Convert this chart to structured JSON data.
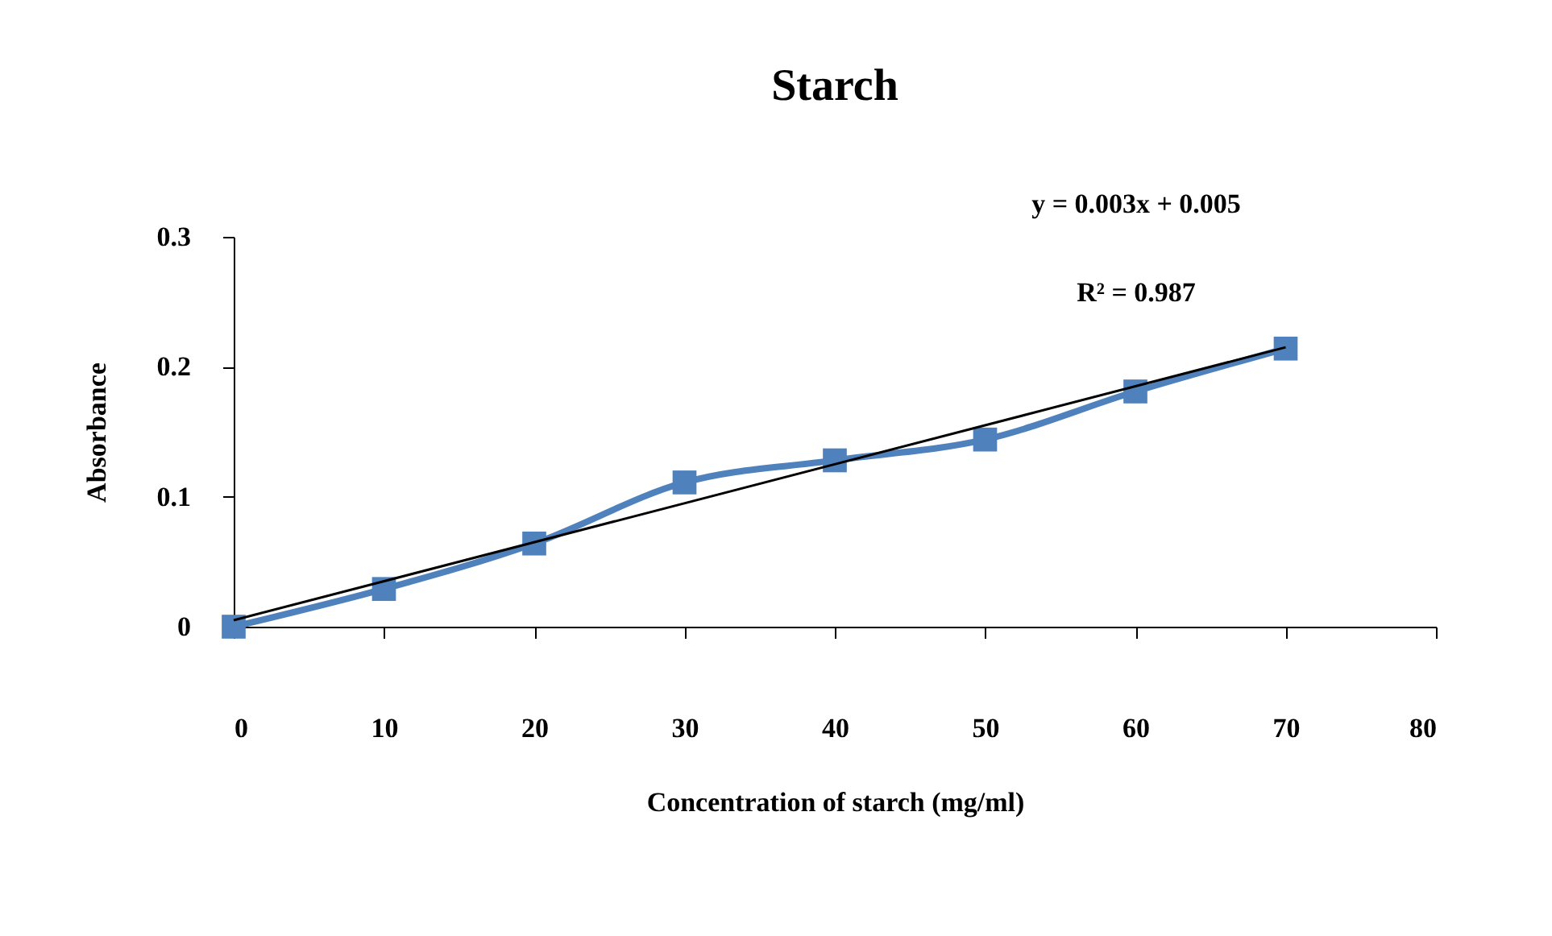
{
  "chart_data": {
    "type": "line",
    "title": "Starch",
    "xlabel": "Concentration of starch (mg/ml)",
    "ylabel": "Absorbance",
    "annotations": [
      "y = 0.003x + 0.005",
      "R² = 0.987"
    ],
    "xlim": [
      0,
      80
    ],
    "xticks": [
      0,
      10,
      20,
      30,
      40,
      50,
      60,
      70,
      80
    ],
    "ylim": [
      0,
      0.3
    ],
    "yticks": [
      0,
      0.1,
      0.2,
      0.3
    ],
    "grid": false,
    "marker": "square",
    "line_style": "solid",
    "series": [
      {
        "color": "#4f81bd",
        "x": [
          0,
          10,
          20,
          30,
          40,
          50,
          60,
          70
        ],
        "values": [
          0,
          0.029,
          0.064,
          0.111,
          0.128,
          0.144,
          0.181,
          0.214
        ]
      },
      {
        "type": "line",
        "color": "#000000",
        "marker": "none",
        "x": [
          0,
          70
        ],
        "values": [
          0.005,
          0.215
        ]
      }
    ]
  }
}
